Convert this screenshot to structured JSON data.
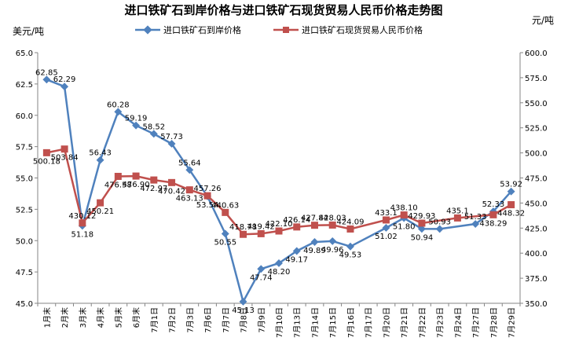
{
  "chart_data": {
    "type": "line",
    "title": "进口铁矿石到岸价格与进口铁矿石现货贸易人民币价格走势图",
    "ylabel_left": "美元/吨",
    "ylabel_right": "元/吨",
    "categories": [
      "1月末",
      "2月末",
      "3月末",
      "4月末",
      "5月末",
      "6月末",
      "7月1日",
      "7月2日",
      "7月3日",
      "7月6日",
      "7月7日",
      "7月8日",
      "7月9日",
      "7月10日",
      "7月13日",
      "7月14日",
      "7月15日",
      "7月16日",
      "7月17日",
      "7月20日",
      "7月21日",
      "7月22日",
      "7月23日",
      "7月24日",
      "7月27日",
      "7月28日",
      "7月29日"
    ],
    "series": [
      {
        "name": "进口铁矿石到岸价格",
        "axis": "left",
        "color": "#4F81BD",
        "marker": "diamond",
        "values": [
          62.85,
          62.29,
          51.18,
          56.43,
          60.28,
          59.19,
          58.52,
          57.73,
          55.64,
          53.54,
          50.55,
          45.13,
          47.74,
          48.2,
          49.17,
          49.89,
          49.96,
          49.53,
          null,
          51.02,
          51.8,
          50.94,
          50.93,
          null,
          51.33,
          52.33,
          53.92
        ],
        "labels": [
          "62.85",
          "62.29",
          "51.18",
          "56.43",
          "60.28",
          "59.19",
          "58.52",
          "57.73",
          "55.64",
          "53.54",
          "50.55",
          "45.13",
          "47.74",
          "48.20",
          "49.17",
          "49.89",
          "49.96",
          "49.53",
          "",
          "51.02",
          "51.80",
          "50.94",
          "50.93",
          "",
          "51.33",
          "52.33",
          "53.92"
        ]
      },
      {
        "name": "进口铁矿石现货贸易人民币价格",
        "axis": "right",
        "color": "#C0504D",
        "marker": "square",
        "values": [
          500.18,
          503.84,
          430.12,
          450.21,
          476.58,
          476.9,
          472.97,
          470.42,
          463.13,
          457.26,
          440.63,
          418.78,
          419.42,
          422.1,
          426.14,
          427.84,
          428.03,
          424.09,
          null,
          433.1,
          438.1,
          429.93,
          null,
          435.1,
          null,
          438.29,
          448.32
        ],
        "labels": [
          "500.18",
          "503.84",
          "430.12",
          "450.21",
          "476.58",
          "476.90",
          "472.97",
          "470.42",
          "463.13",
          "457.26",
          "440.63",
          "418.78",
          "419.42",
          "422.10",
          "426.14",
          "427.84",
          "428.03",
          "424.09",
          "",
          "433.1",
          "438.10",
          "429.93",
          "",
          "435.1",
          "",
          "438.29",
          "448.32"
        ]
      }
    ],
    "ylim_left": [
      45,
      65
    ],
    "yticks_left": [
      "45.0",
      "47.5",
      "50.0",
      "52.5",
      "55.0",
      "57.5",
      "60.0",
      "62.5",
      "65.0"
    ],
    "ylim_right": [
      350,
      600
    ],
    "yticks_right": [
      "350.0",
      "375.0",
      "400.0",
      "425.0",
      "450.0",
      "475.0",
      "500.0",
      "525.0",
      "550.0",
      "575.0",
      "600.0"
    ],
    "grid": "none",
    "legend": "top-center"
  }
}
